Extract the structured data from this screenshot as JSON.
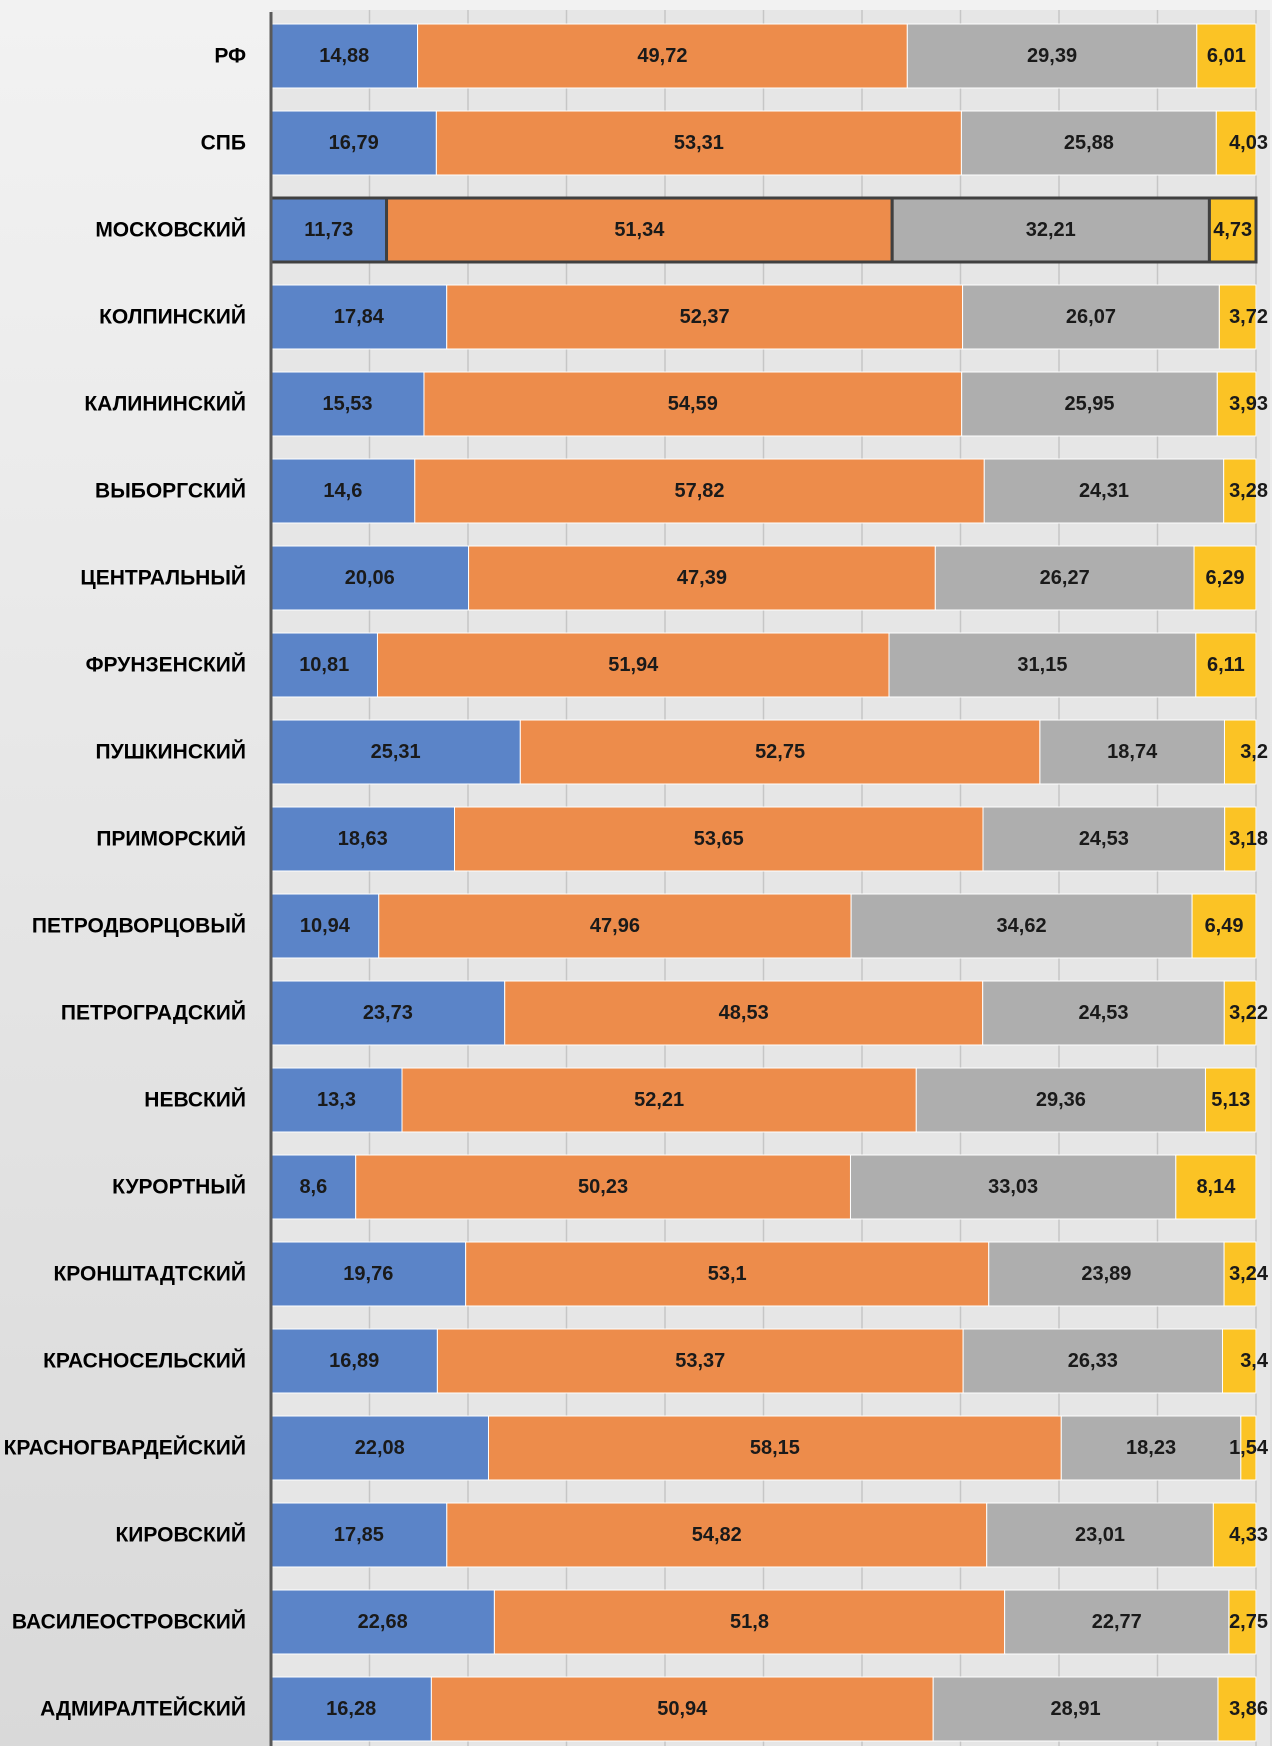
{
  "chart_data": {
    "type": "bar",
    "orientation": "horizontal",
    "stacked": true,
    "percent_stacked": true,
    "categories": [
      "РФ",
      "СПБ",
      "МОСКОВСКИЙ",
      "КОЛПИНСКИЙ",
      "КАЛИНИНСКИЙ",
      "ВЫБОРГСКИЙ",
      "ЦЕНТРАЛЬНЫЙ",
      "ФРУНЗЕНСКИЙ",
      "ПУШКИНСКИЙ",
      "ПРИМОРСКИЙ",
      "ПЕТРОДВОРЦОВЫЙ",
      "ПЕТРОГРАДСКИЙ",
      "НЕВСКИЙ",
      "КУРОРТНЫЙ",
      "КРОНШТАДТСКИЙ",
      "КРАСНОСЕЛЬСКИЙ",
      "КРАСНОГВАРДЕЙСКИЙ",
      "КИРОВСКИЙ",
      "ВАСИЛЕОСТРОВСКИЙ",
      "АДМИРАЛТЕЙСКИЙ"
    ],
    "series": [
      {
        "color": "#5b84c8",
        "values": [
          14.88,
          16.79,
          11.73,
          17.84,
          15.53,
          14.6,
          20.06,
          10.81,
          25.31,
          18.63,
          10.94,
          23.73,
          13.3,
          8.6,
          19.76,
          16.89,
          22.08,
          17.85,
          22.68,
          16.28
        ],
        "labels": [
          "14,88",
          "16,79",
          "11,73",
          "17,84",
          "15,53",
          "14,6",
          "20,06",
          "10,81",
          "25,31",
          "18,63",
          "10,94",
          "23,73",
          "13,3",
          "8,6",
          "19,76",
          "16,89",
          "22,08",
          "17,85",
          "22,68",
          "16,28"
        ]
      },
      {
        "color": "#ed8c4b",
        "values": [
          49.72,
          53.31,
          51.34,
          52.37,
          54.59,
          57.82,
          47.39,
          51.94,
          52.75,
          53.65,
          47.96,
          48.53,
          52.21,
          50.23,
          53.1,
          53.37,
          58.15,
          54.82,
          51.8,
          50.94
        ],
        "labels": [
          "49,72",
          "53,31",
          "51,34",
          "52,37",
          "54,59",
          "57,82",
          "47,39",
          "51,94",
          "52,75",
          "53,65",
          "47,96",
          "48,53",
          "52,21",
          "50,23",
          "53,1",
          "53,37",
          "58,15",
          "54,82",
          "51,8",
          "50,94"
        ]
      },
      {
        "color": "#aeaeae",
        "values": [
          29.39,
          25.88,
          32.21,
          26.07,
          25.95,
          24.31,
          26.27,
          31.15,
          18.74,
          24.53,
          34.62,
          24.53,
          29.36,
          33.03,
          23.89,
          26.33,
          18.23,
          23.01,
          22.77,
          28.91
        ],
        "labels": [
          "29,39",
          "25,88",
          "32,21",
          "26,07",
          "25,95",
          "24,31",
          "26,27",
          "31,15",
          "18,74",
          "24,53",
          "34,62",
          "24,53",
          "29,36",
          "33,03",
          "23,89",
          "26,33",
          "18,23",
          "23,01",
          "22,77",
          "28,91"
        ]
      },
      {
        "color": "#fbc325",
        "values": [
          6.01,
          4.03,
          4.73,
          3.72,
          3.93,
          3.28,
          6.29,
          6.11,
          3.2,
          3.18,
          6.49,
          3.22,
          5.13,
          8.14,
          3.24,
          3.4,
          1.54,
          4.33,
          2.75,
          3.86
        ],
        "labels": [
          "6,01",
          "4,03",
          "4,73",
          "3,72",
          "3,93",
          "3,28",
          "6,29",
          "6,11",
          "3,2",
          "3,18",
          "6,49",
          "3,22",
          "5,13",
          "8,14",
          "3,24",
          "3,4",
          "1,54",
          "4,33",
          "2,75",
          "3,86"
        ]
      }
    ],
    "highlighted_category": "МОСКОВСКИЙ",
    "xlim": [
      0,
      100
    ],
    "grid": true
  }
}
